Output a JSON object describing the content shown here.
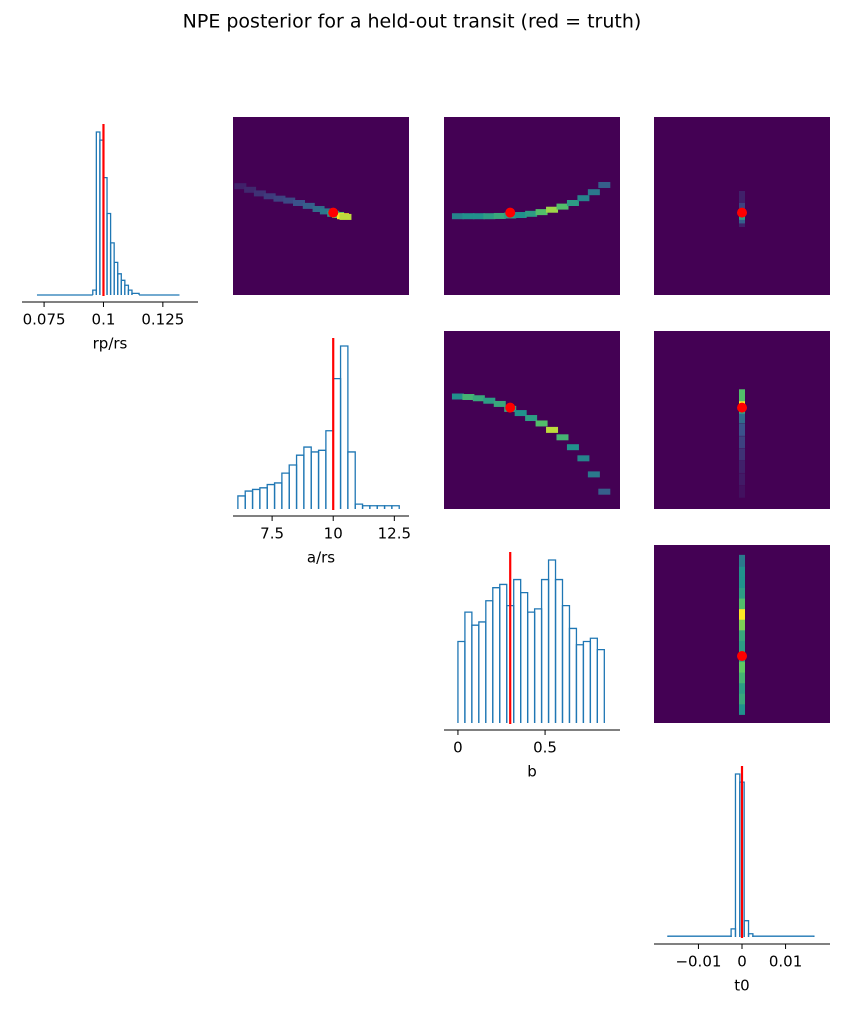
{
  "chart_data": {
    "type": "corner",
    "title": "NPE posterior for a held-out transit (red = truth)",
    "hist_color": "#1f77b4",
    "truth_color": "#ff0000",
    "colormap": "viridis",
    "truth": [
      0.1,
      10,
      0.3,
      0
    ],
    "parameters": [
      {
        "name": "rp/rs",
        "xlim": [
          0.0657,
          0.1398
        ],
        "xticks": [
          0.075,
          0.1,
          0.125
        ],
        "bins": [
          0.072,
          0.0955,
          0.097,
          0.0985,
          0.1,
          0.1015,
          0.103,
          0.1045,
          0.106,
          0.1075,
          0.109,
          0.1105,
          0.112,
          0.115,
          0.132
        ],
        "values": [
          0,
          0.03,
          1.0,
          0.95,
          0.72,
          0.5,
          0.32,
          0.2,
          0.13,
          0.09,
          0.06,
          0.03,
          0.01,
          0
        ]
      },
      {
        "name": "a/rs",
        "xlim": [
          5.9,
          13.1
        ],
        "xticks": [
          7.5,
          10,
          12.5
        ],
        "bins": [
          6.1,
          6.4,
          6.7,
          7.0,
          7.3,
          7.6,
          7.9,
          8.2,
          8.5,
          8.8,
          9.1,
          9.4,
          9.7,
          10.0,
          10.3,
          10.6,
          10.9,
          11.2,
          11.5,
          11.8,
          12.1,
          12.4,
          12.7
        ],
        "values": [
          0.08,
          0.11,
          0.12,
          0.13,
          0.15,
          0.16,
          0.22,
          0.27,
          0.33,
          0.38,
          0.35,
          0.36,
          0.48,
          0.8,
          1.0,
          0.35,
          0.03,
          0.02,
          0.02,
          0.02,
          0.02,
          0.02
        ]
      },
      {
        "name": "b",
        "xlim": [
          -0.08,
          0.93
        ],
        "xticks": [
          0,
          0.5
        ],
        "bins": [
          0,
          0.04,
          0.08,
          0.12,
          0.16,
          0.2,
          0.24,
          0.28,
          0.32,
          0.36,
          0.4,
          0.44,
          0.48,
          0.52,
          0.56,
          0.6,
          0.64,
          0.68,
          0.72,
          0.76,
          0.8,
          0.84
        ],
        "values": [
          0.5,
          0.68,
          0.6,
          0.62,
          0.75,
          0.83,
          0.85,
          0.72,
          0.88,
          0.8,
          0.68,
          0.7,
          0.88,
          1.0,
          0.88,
          0.72,
          0.58,
          0.48,
          0.5,
          0.52,
          0.45
        ]
      },
      {
        "name": "t0",
        "xlim": [
          -0.0202,
          0.0202
        ],
        "xticks": [
          {
            "value": -0.01,
            "label": "−0.01"
          },
          0,
          0.01
        ],
        "bins": [
          -0.017,
          -0.0025,
          -0.0015,
          -0.0005,
          0.0005,
          0.0015,
          0.0025,
          0.0165
        ],
        "values": [
          0.005,
          0.05,
          1.0,
          0.95,
          0.1,
          0.02,
          0.005
        ]
      }
    ],
    "panels": [
      {
        "x": [
          6.2,
          6.6,
          7.0,
          7.4,
          7.8,
          8.2,
          8.6,
          9.0,
          9.4,
          9.7,
          10.0,
          10.2,
          10.4,
          10.5
        ],
        "y": [
          0.111,
          0.1095,
          0.108,
          0.1068,
          0.1058,
          0.105,
          0.104,
          0.1028,
          0.1015,
          0.1005,
          0.0995,
          0.099,
          0.0985,
          0.0982
        ],
        "values": [
          0.1,
          0.12,
          0.15,
          0.18,
          0.2,
          0.22,
          0.25,
          0.3,
          0.35,
          0.4,
          0.55,
          0.75,
          1.0,
          0.9
        ]
      },
      {
        "x": [
          0,
          0.06,
          0.12,
          0.18,
          0.24,
          0.3,
          0.36,
          0.42,
          0.48,
          0.54,
          0.6,
          0.66,
          0.72,
          0.78,
          0.84
        ],
        "y": [
          0.0985,
          0.0985,
          0.0985,
          0.0985,
          0.0986,
          0.0988,
          0.099,
          0.0995,
          0.1002,
          0.1012,
          0.1025,
          0.104,
          0.106,
          0.1085,
          0.1115
        ],
        "values": [
          0.45,
          0.5,
          0.5,
          0.55,
          0.6,
          0.55,
          0.5,
          0.55,
          0.7,
          0.85,
          0.7,
          0.55,
          0.45,
          0.4,
          0.3
        ]
      },
      {
        "x": [
          0,
          0,
          0,
          0,
          0,
          0,
          0
        ],
        "y": [
          0.0965,
          0.098,
          0.0995,
          0.101,
          0.1025,
          0.104,
          0.1065
        ],
        "values": [
          0.1,
          0.3,
          0.55,
          0.45,
          0.3,
          0.2,
          0.1
        ]
      },
      {
        "x": [
          0,
          0.06,
          0.12,
          0.18,
          0.24,
          0.3,
          0.36,
          0.42,
          0.48,
          0.54,
          0.6,
          0.66,
          0.72,
          0.78,
          0.84
        ],
        "y": [
          10.45,
          10.43,
          10.38,
          10.28,
          10.15,
          9.95,
          9.78,
          9.58,
          9.36,
          9.1,
          8.8,
          8.4,
          7.95,
          7.3,
          6.6
        ],
        "values": [
          0.5,
          0.65,
          0.6,
          0.55,
          0.6,
          0.6,
          0.5,
          0.55,
          0.7,
          0.9,
          0.65,
          0.5,
          0.45,
          0.4,
          0.3
        ]
      },
      {
        "x": [
          0,
          0,
          0,
          0,
          0,
          0,
          0,
          0,
          0,
          0
        ],
        "y": [
          6.6,
          7.1,
          7.6,
          8.1,
          8.6,
          9.1,
          9.6,
          10.0,
          10.3,
          10.5
        ],
        "values": [
          0.05,
          0.08,
          0.1,
          0.15,
          0.2,
          0.25,
          0.35,
          0.6,
          1.0,
          0.7
        ]
      },
      {
        "x": [
          0,
          0,
          0,
          0,
          0,
          0,
          0,
          0,
          0,
          0,
          0,
          0,
          0,
          0,
          0
        ],
        "y": [
          0.0,
          0.06,
          0.12,
          0.18,
          0.24,
          0.3,
          0.36,
          0.42,
          0.48,
          0.54,
          0.6,
          0.66,
          0.72,
          0.78,
          0.84
        ],
        "values": [
          0.5,
          0.6,
          0.55,
          0.65,
          0.75,
          0.6,
          0.55,
          0.6,
          0.8,
          1.0,
          0.7,
          0.55,
          0.5,
          0.5,
          0.4
        ]
      }
    ]
  }
}
